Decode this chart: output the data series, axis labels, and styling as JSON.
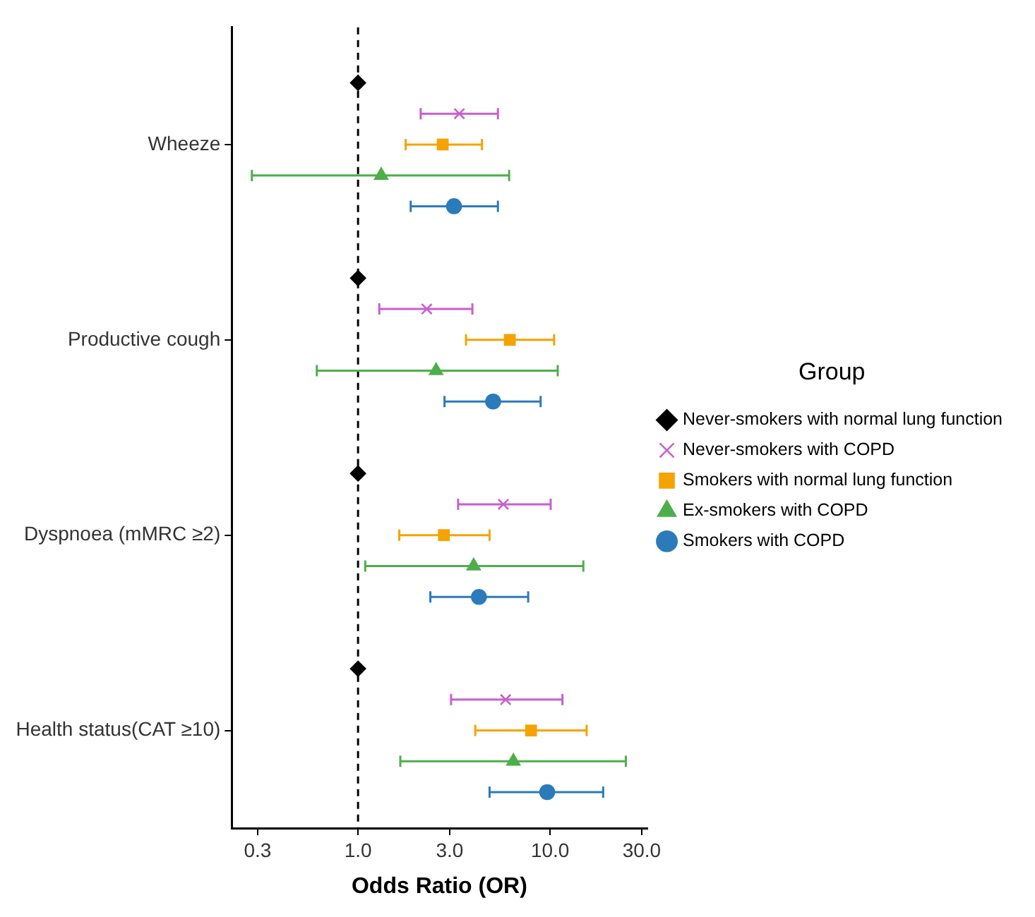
{
  "chart_data": {
    "type": "scatter",
    "orientation": "horizontal",
    "xlabel": "Odds Ratio (OR)",
    "legend_title": "Group",
    "legend": "right",
    "grid": false,
    "log": "x",
    "categories": [
      "Wheeze",
      "Productive cough",
      "Dyspnoea (mMRC ≥2)",
      "Health status(CAT ≥10)"
    ],
    "xlim": [
      0.22,
      32
    ],
    "xticks": [
      {
        "value": 0.3,
        "label": "0.3"
      },
      {
        "value": 1,
        "label": "1.0"
      },
      {
        "value": 3,
        "label": "3.0"
      },
      {
        "value": 10,
        "label": "10.0"
      },
      {
        "value": 30,
        "label": "30.0"
      }
    ],
    "ref_lines": [
      {
        "axis": "x",
        "value": 1,
        "color": "#000000",
        "line_style": "dashed"
      }
    ],
    "series": [
      {
        "name": "Never-smokers with normal lung function",
        "color": "#000000",
        "marker": "diamond",
        "values": [
          1,
          1,
          1,
          1
        ],
        "errors": [
          null,
          null,
          null,
          null
        ]
      },
      {
        "name": "Never-smokers with COPD",
        "color": "#c85fd0",
        "marker": "cross",
        "values": [
          3.37,
          2.28,
          5.71,
          5.87
        ],
        "errors": [
          [
            2.12,
            5.35
          ],
          [
            1.29,
            3.94
          ],
          [
            3.32,
            10.07
          ],
          [
            3.05,
            11.6
          ]
        ]
      },
      {
        "name": "Smokers with normal lung function",
        "color": "#f5a300",
        "marker": "square",
        "values": [
          2.76,
          6.17,
          2.8,
          7.96
        ],
        "errors": [
          [
            1.77,
            4.42
          ],
          [
            3.65,
            10.5
          ],
          [
            1.64,
            4.84
          ],
          [
            4.08,
            15.5
          ]
        ]
      },
      {
        "name": "Ex-smokers with COPD",
        "color": "#4daf4a",
        "marker": "triangle",
        "values": [
          1.32,
          2.55,
          4.0,
          6.44
        ],
        "errors": [
          [
            0.28,
            6.12
          ],
          [
            0.61,
            10.96
          ],
          [
            1.09,
            14.9
          ],
          [
            1.66,
            24.8
          ]
        ]
      },
      {
        "name": "Smokers with COPD",
        "color": "#2b7bba",
        "marker": "circle",
        "values": [
          3.16,
          5.05,
          4.26,
          9.66
        ],
        "errors": [
          [
            1.88,
            5.35
          ],
          [
            2.82,
            8.93
          ],
          [
            2.38,
            7.69
          ],
          [
            4.84,
            18.9
          ]
        ]
      }
    ]
  }
}
